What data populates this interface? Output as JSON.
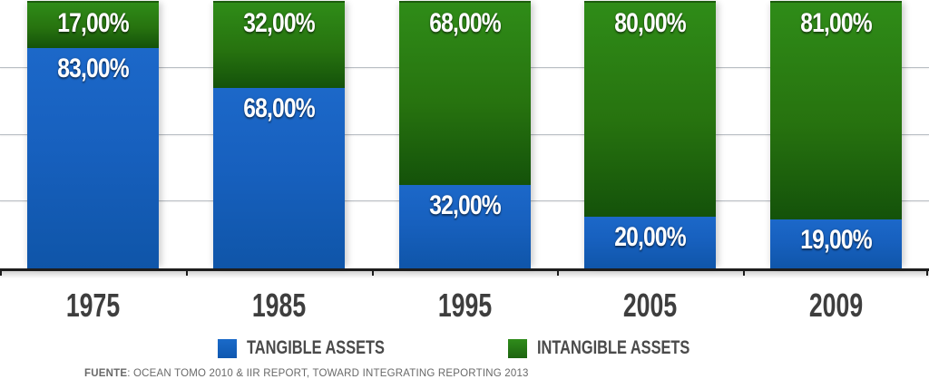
{
  "chart_data": {
    "type": "bar",
    "stacked": true,
    "title": "",
    "categories": [
      "1975",
      "1985",
      "1995",
      "2005",
      "2009"
    ],
    "series": [
      {
        "name": "TANGIBLE ASSETS",
        "color": "#1565C0",
        "values": [
          83,
          68,
          32,
          20,
          19
        ],
        "labels": [
          "83,00%",
          "68,00%",
          "32,00%",
          "20,00%",
          "19,00%"
        ]
      },
      {
        "name": "INTANGIBLE ASSETS",
        "color": "#2E8B17",
        "values": [
          17,
          32,
          68,
          80,
          81
        ],
        "labels": [
          "17,00%",
          "32,00%",
          "68,00%",
          "80,00%",
          "81,00%"
        ]
      }
    ],
    "ylim": [
      0,
      100
    ],
    "grid": true,
    "gridline_step_pct": 25,
    "legend_position": "bottom",
    "value_label_format": "comma-decimal-percent"
  },
  "legend": {
    "items": [
      {
        "label": "TANGIBLE ASSETS",
        "color": "#1565C0"
      },
      {
        "label": "INTANGIBLE ASSETS",
        "color": "#2E8B17"
      }
    ]
  },
  "source": {
    "prefix": "FUENTE",
    "rest": ": OCEAN TOMO 2010 & IIR REPORT, TOWARD INTEGRATING REPORTING 2013"
  },
  "colors": {
    "tangible_blue": "#1565C0",
    "intangible_green": "#2E8B17",
    "axis": "#1D1D1D",
    "gridline": "#B9BEC4",
    "year_label": "#3E3E3E",
    "legend_text": "#4A4A4A",
    "source_text": "#696969",
    "background": "#FFFFFF"
  }
}
